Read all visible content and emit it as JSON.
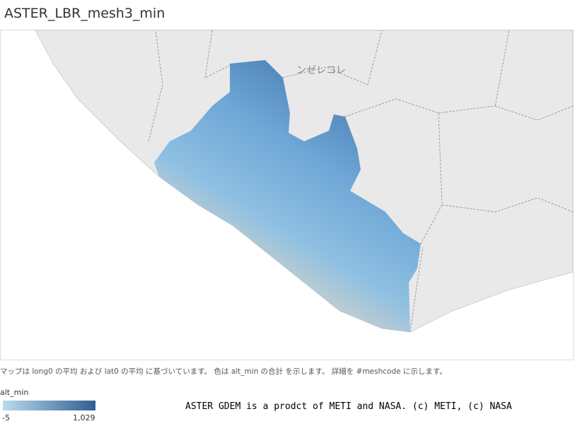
{
  "header": {
    "title": "ASTER_LBR_mesh3_min"
  },
  "map": {
    "place_label": "ンゼレコレ"
  },
  "caption": "マップは long0 の平均 および lat0 の平均 に基づいています。 色は alt_min の合計 を示します。 詳細を #meshcode に示します。",
  "legend": {
    "title": "alt_min",
    "min": -5,
    "max": {
      "value": 1029,
      "label": "1,029"
    }
  },
  "attribution": "ASTER GDEM is a prodct of METI and NASA. (c) METI, (c) NASA"
}
